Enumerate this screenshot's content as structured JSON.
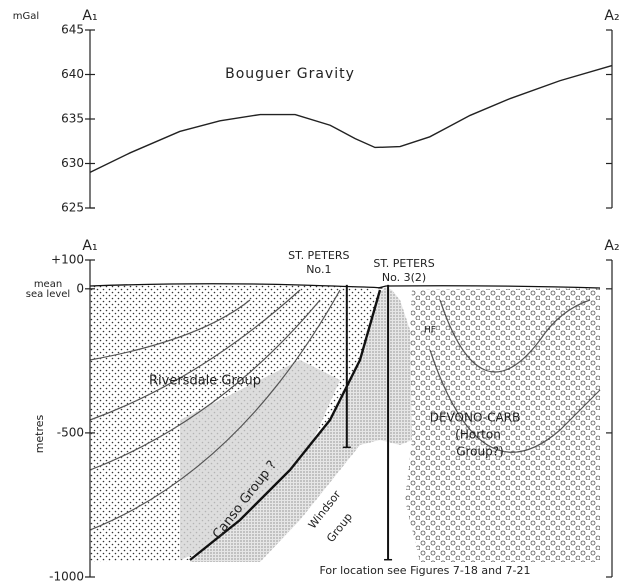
{
  "chart_data": [
    {
      "type": "line",
      "title": "Bouguer Gravity",
      "y_label": "mGal",
      "left_label": "A₁",
      "right_label": "A₂",
      "x": [
        0,
        7.7,
        17.2,
        24.9,
        32.6,
        39.3,
        46,
        50.8,
        54.6,
        59.4,
        65.1,
        72.8,
        80.5,
        90,
        100
      ],
      "values": [
        629,
        631.2,
        633.6,
        634.8,
        635.5,
        635.5,
        634.3,
        632.8,
        631.8,
        631.9,
        633,
        635.4,
        637.3,
        639.3,
        641
      ],
      "color": "#222222",
      "xlim": [
        0,
        100
      ],
      "ylim": [
        625,
        645
      ],
      "yticks": [
        625,
        630,
        635,
        640,
        645
      ]
    },
    {
      "type": "cross-section",
      "y_label": "metres",
      "left_label": "A₁",
      "right_label": "A₂",
      "xlim": [
        0,
        100
      ],
      "ylim": [
        -1000,
        100
      ],
      "yticks": [
        -1000,
        -500,
        0,
        {
          "value": 100,
          "label": "+100"
        }
      ],
      "sea_level_label": [
        "mean",
        "sea level"
      ],
      "wells": [
        {
          "name": "ST. PETERS",
          "number": "No.1",
          "x": 49.2,
          "depth": -550
        },
        {
          "name": "ST. PETERS",
          "number": "No. 3(2)",
          "x": 57.1,
          "depth": -940
        }
      ],
      "units": [
        "Riversdale Group",
        "Canso Group ?",
        "Windsor",
        "Group",
        "DEVONO-CARB",
        "(Horton",
        "Group?)",
        "HF"
      ],
      "note": "For location see Figures 7-18 and 7-21"
    }
  ]
}
